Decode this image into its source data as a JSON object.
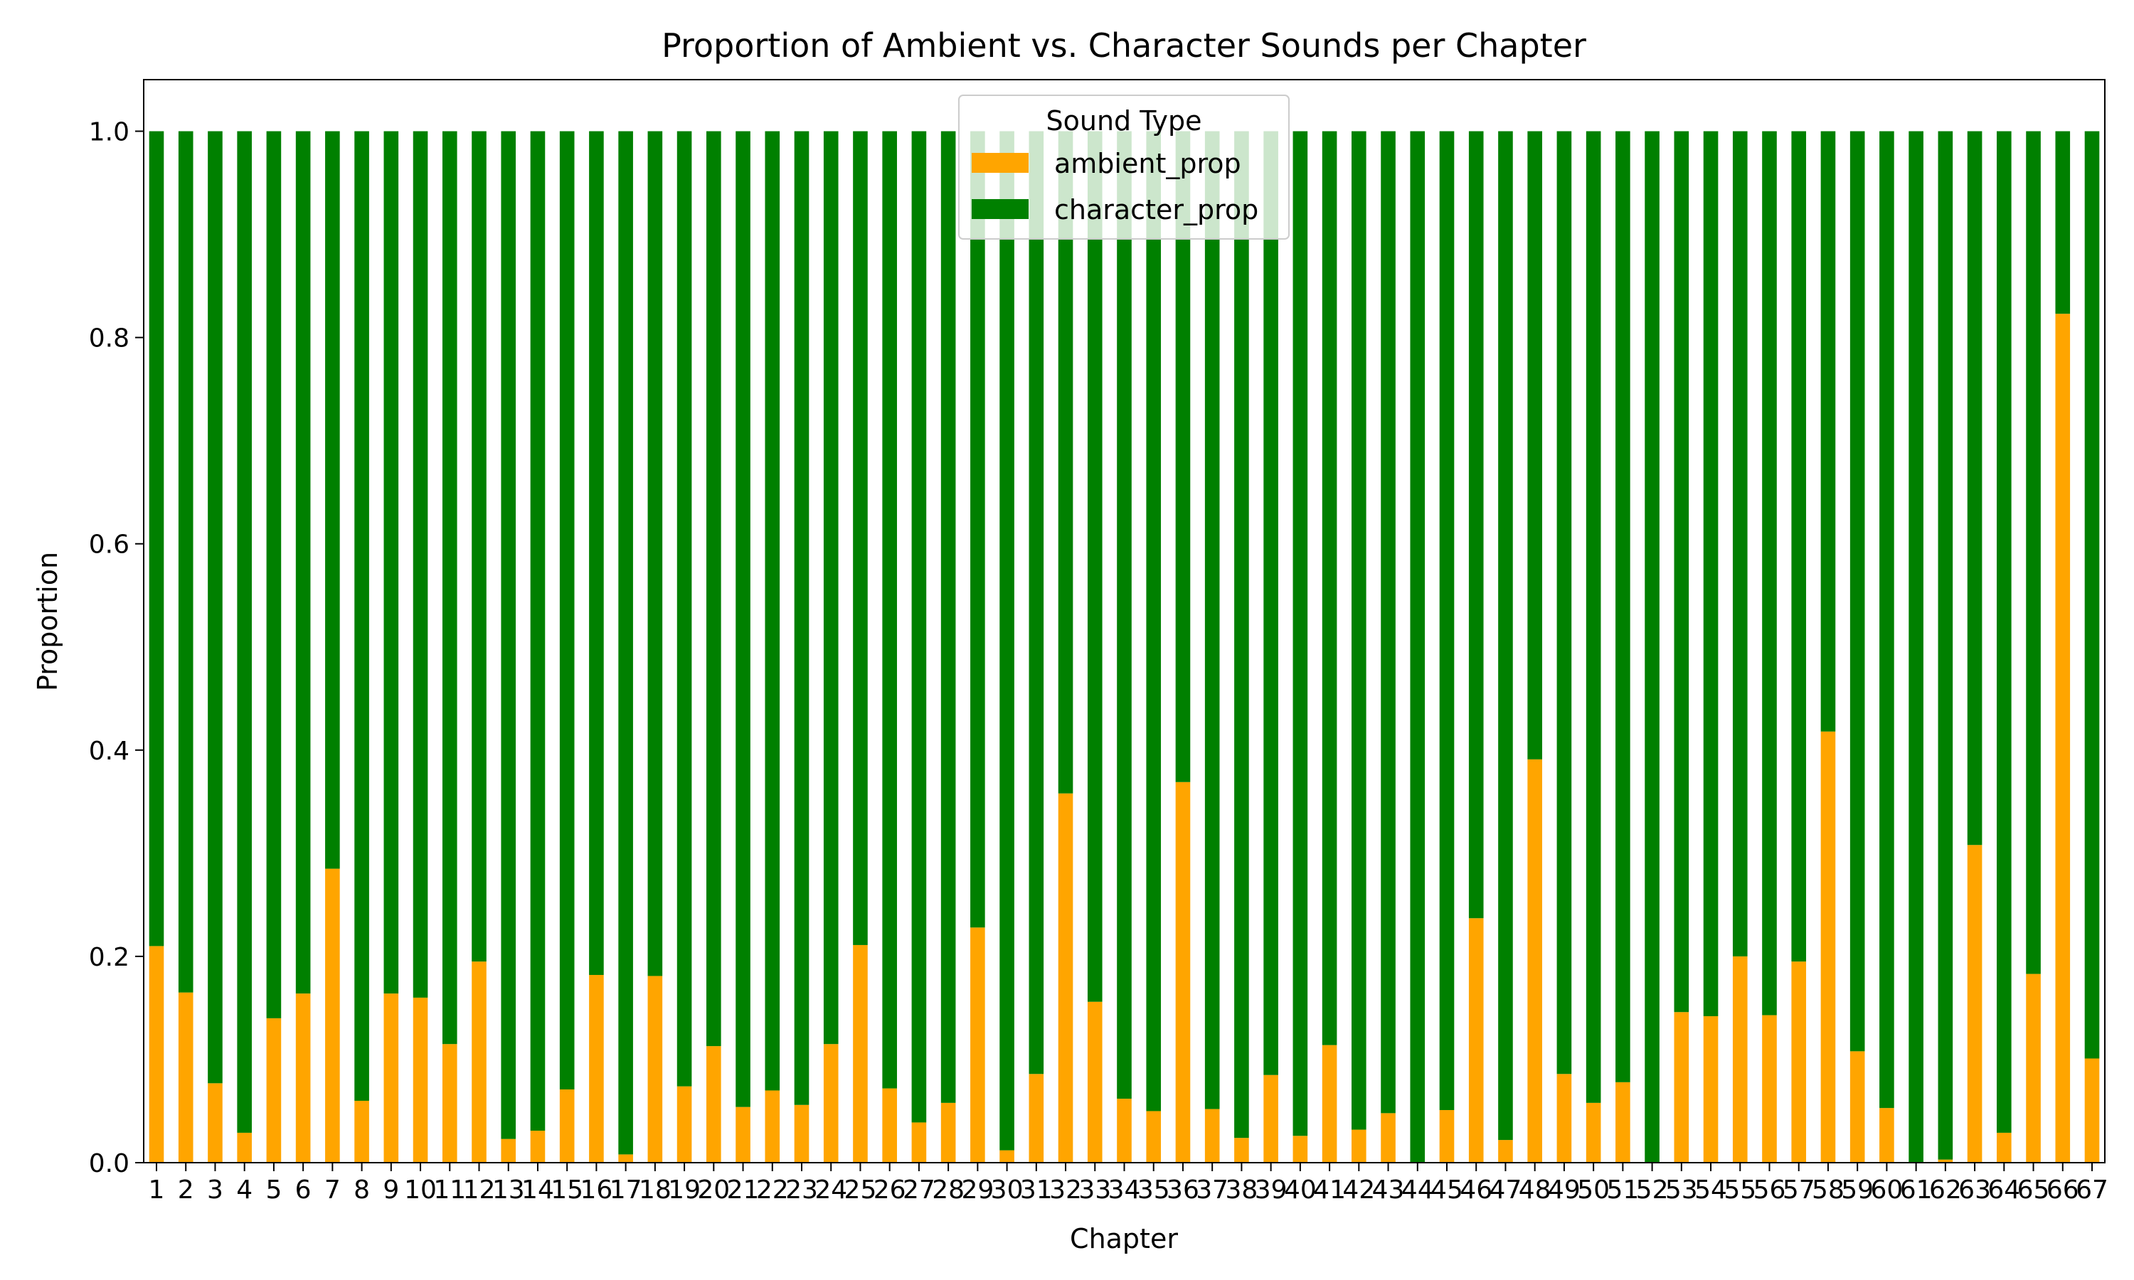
{
  "chart_data": {
    "type": "bar",
    "stacked": true,
    "title": "Proportion of Ambient vs. Character Sounds per Chapter",
    "xlabel": "Chapter",
    "ylabel": "Proportion",
    "ylim": [
      0,
      1.05
    ],
    "yticks": [
      "0.0",
      "0.2",
      "0.4",
      "0.6",
      "0.8",
      "1.0"
    ],
    "grid": false,
    "legend": {
      "title": "Sound Type",
      "placement": "top-center"
    },
    "categories": [
      "1",
      "2",
      "3",
      "4",
      "5",
      "6",
      "7",
      "8",
      "9",
      "10",
      "11",
      "12",
      "13",
      "14",
      "15",
      "16",
      "17",
      "18",
      "19",
      "20",
      "21",
      "22",
      "23",
      "24",
      "25",
      "26",
      "27",
      "28",
      "29",
      "30",
      "31",
      "32",
      "33",
      "34",
      "35",
      "36",
      "37",
      "38",
      "39",
      "40",
      "41",
      "42",
      "43",
      "44",
      "45",
      "46",
      "47",
      "48",
      "49",
      "50",
      "51",
      "52",
      "53",
      "54",
      "55",
      "56",
      "57",
      "58",
      "59",
      "60",
      "61",
      "62",
      "63",
      "64",
      "65",
      "66",
      "67"
    ],
    "series": [
      {
        "name": "ambient_prop",
        "color": "#ffa500",
        "values": [
          0.21,
          0.165,
          0.077,
          0.029,
          0.14,
          0.164,
          0.285,
          0.06,
          0.164,
          0.16,
          0.115,
          0.195,
          0.023,
          0.031,
          0.071,
          0.182,
          0.008,
          0.181,
          0.074,
          0.113,
          0.054,
          0.07,
          0.056,
          0.115,
          0.211,
          0.072,
          0.039,
          0.058,
          0.228,
          0.012,
          0.086,
          0.358,
          0.156,
          0.062,
          0.05,
          0.369,
          0.052,
          0.024,
          0.085,
          0.026,
          0.114,
          0.032,
          0.048,
          0.0,
          0.051,
          0.237,
          0.022,
          0.391,
          0.086,
          0.058,
          0.078,
          0.0,
          0.146,
          0.142,
          0.2,
          0.143,
          0.195,
          0.418,
          0.108,
          0.053,
          0.0,
          0.003,
          0.308,
          0.029,
          0.183,
          0.823,
          0.101
        ]
      },
      {
        "name": "character_prop",
        "color": "#008000",
        "values": [
          0.79,
          0.835,
          0.923,
          0.971,
          0.86,
          0.836,
          0.715,
          0.94,
          0.836,
          0.84,
          0.885,
          0.805,
          0.977,
          0.969,
          0.929,
          0.818,
          0.992,
          0.819,
          0.926,
          0.887,
          0.946,
          0.93,
          0.944,
          0.885,
          0.789,
          0.928,
          0.961,
          0.942,
          0.772,
          0.988,
          0.914,
          0.642,
          0.844,
          0.938,
          0.95,
          0.631,
          0.948,
          0.976,
          0.915,
          0.974,
          0.886,
          0.968,
          0.952,
          1.0,
          0.949,
          0.763,
          0.978,
          0.609,
          0.914,
          0.942,
          0.922,
          1.0,
          0.854,
          0.858,
          0.8,
          0.857,
          0.805,
          0.582,
          0.892,
          0.947,
          1.0,
          0.997,
          0.692,
          0.971,
          0.817,
          0.177,
          0.899
        ]
      }
    ]
  }
}
